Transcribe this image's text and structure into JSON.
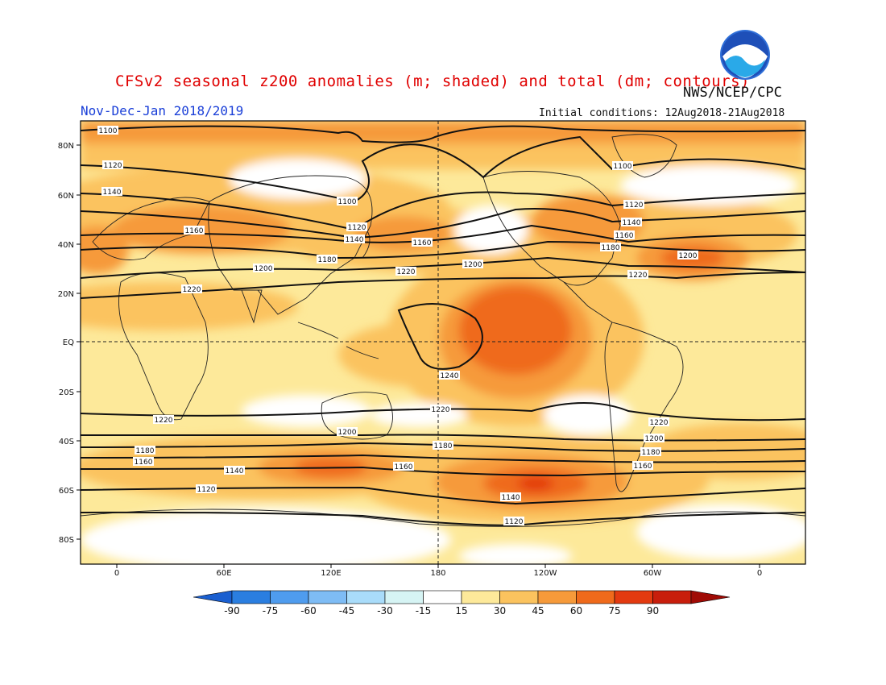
{
  "header": {
    "title": "CFSv2 seasonal z200 anomalies (m; shaded) and total (dm; contours)",
    "season": "Nov-Dec-Jan 2018/2019",
    "agency": "NWS/NCEP/CPC",
    "initial_conditions": "Initial conditions: 12Aug2018-21Aug2018",
    "logo_text": "NOAA"
  },
  "axes": {
    "lat_labels": [
      "80N",
      "60N",
      "40N",
      "20N",
      "EQ",
      "20S",
      "40S",
      "60S",
      "80S"
    ],
    "lon_labels": [
      "0",
      "60E",
      "120E",
      "180",
      "120W",
      "60W",
      "0"
    ]
  },
  "contour_labels": [
    "1100",
    "1120",
    "1140",
    "1160",
    "1180",
    "1200",
    "1220",
    "1240"
  ],
  "colorbar": {
    "labels": [
      "-90",
      "-75",
      "-60",
      "-45",
      "-30",
      "-15",
      "15",
      "30",
      "45",
      "60",
      "75",
      "90"
    ],
    "colors": [
      "#1a5fd0",
      "#2a7ee0",
      "#4f9cee",
      "#7ebcf5",
      "#a9dcfa",
      "#d6f4f4",
      "#ffffff",
      "#fde99a",
      "#fbc35e",
      "#f69a3a",
      "#ef6a1b",
      "#e33a10",
      "#c81e0c",
      "#a00b05"
    ]
  },
  "shading_colors": {
    "white": "#ffffff",
    "light": "#fde99a",
    "c30": "#fbc35e",
    "c45": "#f69a3a",
    "c60": "#ef6a1b",
    "c75": "#e33a10"
  },
  "contour_color": "#111111",
  "coast_color": "#222222"
}
